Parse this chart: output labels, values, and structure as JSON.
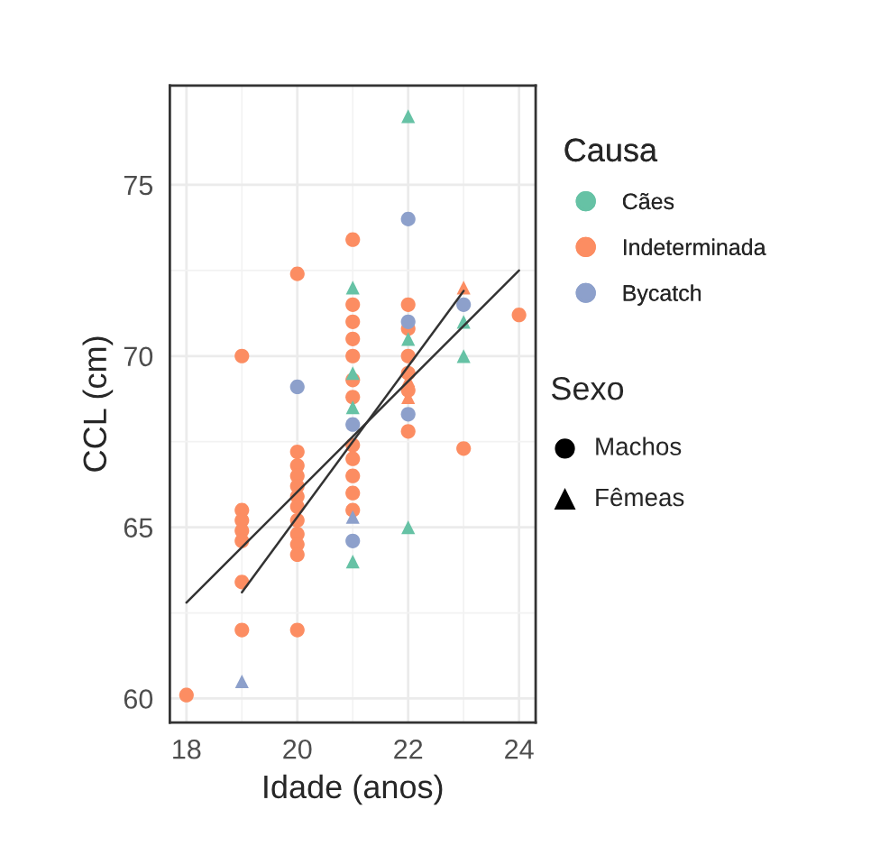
{
  "chart_data": {
    "type": "scatter",
    "xlabel": "Idade (anos)",
    "ylabel": "CCL (cm)",
    "legend_title": "Causa",
    "legend": "right",
    "grid": true,
    "xlim": [
      17.7,
      24.3
    ],
    "xticks": [
      18,
      20,
      22,
      24
    ],
    "ylim": [
      59.3,
      77.9
    ],
    "yticks": [
      60,
      65,
      70,
      75
    ],
    "series": [
      {
        "name": "Cães",
        "color": "#66c2a5",
        "marker": "triangle",
        "x": [
          21,
          21,
          21,
          21,
          22,
          22,
          22,
          23,
          23
        ],
        "values": [
          72.0,
          69.5,
          68.5,
          64.0,
          77.0,
          70.5,
          65.0,
          71.0,
          70.0
        ]
      },
      {
        "name": "Indeterminada",
        "color": "#fc8d62",
        "marker": "circle",
        "x": [
          18,
          19,
          19,
          19,
          19,
          19,
          19,
          19,
          20,
          20,
          20,
          20,
          20,
          20,
          20,
          20,
          20,
          20,
          20,
          20,
          21,
          21,
          21,
          21,
          21,
          21,
          21,
          21,
          21,
          21,
          21,
          21,
          22,
          22,
          22,
          22,
          22,
          22,
          23,
          24
        ],
        "values": [
          60.1,
          70.0,
          65.5,
          65.2,
          64.9,
          64.6,
          63.4,
          62.0,
          72.4,
          67.2,
          66.8,
          66.5,
          66.2,
          65.9,
          65.6,
          65.2,
          64.8,
          64.5,
          64.2,
          62.0,
          73.4,
          71.5,
          71.0,
          70.5,
          70.0,
          69.3,
          68.8,
          67.4,
          67.0,
          66.5,
          66.0,
          65.5,
          71.5,
          70.8,
          70.0,
          69.5,
          69.0,
          67.8,
          67.3,
          71.2
        ]
      },
      {
        "color": "#fc8d62",
        "marker": "triangle",
        "x": [
          22,
          22,
          23
        ],
        "values": [
          69.3,
          68.8,
          72.0
        ]
      },
      {
        "name": "Bycatch",
        "color": "#8da0cb",
        "marker": "circle",
        "x": [
          20,
          21,
          21,
          22,
          22,
          22,
          23
        ],
        "values": [
          69.1,
          68.0,
          64.6,
          74.0,
          71.0,
          68.3,
          71.5
        ]
      },
      {
        "color": "#8da0cb",
        "marker": "triangle",
        "x": [
          19,
          21
        ],
        "values": [
          60.5,
          65.3
        ]
      },
      {
        "type": "line",
        "color": "#333333",
        "x": [
          18,
          24
        ],
        "values": [
          62.8,
          72.5
        ]
      },
      {
        "type": "line",
        "color": "#333333",
        "x": [
          19,
          23
        ],
        "values": [
          63.1,
          71.9
        ]
      }
    ],
    "annotations": [
      "Sexo",
      "Machos",
      "Fêmeas"
    ]
  }
}
